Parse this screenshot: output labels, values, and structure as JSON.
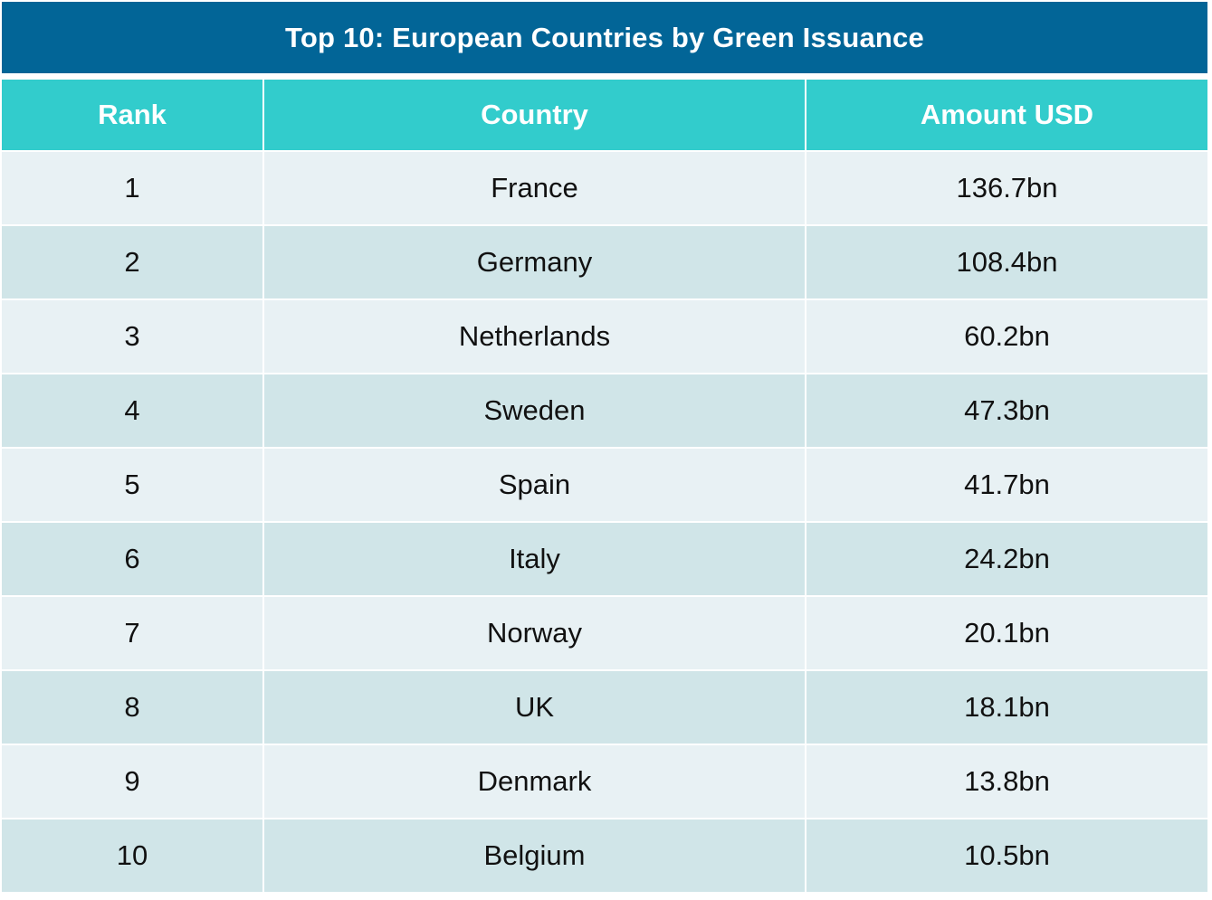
{
  "table": {
    "title": "Top 10: European Countries by Green Issuance",
    "headers": {
      "rank": "Rank",
      "country": "Country",
      "amount": "Amount USD"
    },
    "rows": [
      {
        "rank": "1",
        "country": "France",
        "amount": "136.7bn"
      },
      {
        "rank": "2",
        "country": "Germany",
        "amount": "108.4bn"
      },
      {
        "rank": "3",
        "country": "Netherlands",
        "amount": "60.2bn"
      },
      {
        "rank": "4",
        "country": "Sweden",
        "amount": "47.3bn"
      },
      {
        "rank": "5",
        "country": "Spain",
        "amount": "41.7bn"
      },
      {
        "rank": "6",
        "country": "Italy",
        "amount": "24.2bn"
      },
      {
        "rank": "7",
        "country": "Norway",
        "amount": "20.1bn"
      },
      {
        "rank": "8",
        "country": "UK",
        "amount": "18.1bn"
      },
      {
        "rank": "9",
        "country": "Denmark",
        "amount": "13.8bn"
      },
      {
        "rank": "10",
        "country": "Belgium",
        "amount": "10.5bn"
      }
    ]
  },
  "colors": {
    "title_bg": "#026597",
    "header_bg": "#32cccc",
    "row_light": "#e8f1f4",
    "row_dark": "#d0e5e8"
  }
}
